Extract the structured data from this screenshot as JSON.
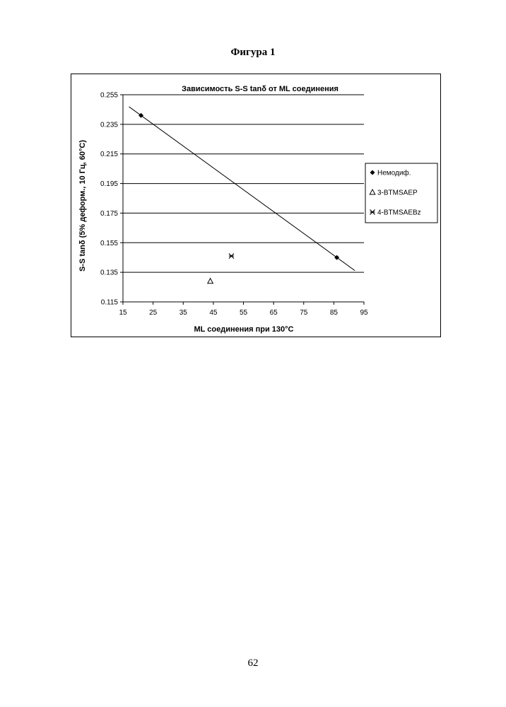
{
  "page": {
    "caption": "Фигура 1",
    "page_number": "62"
  },
  "chart_data": {
    "type": "scatter",
    "title": "Зависимость S-S tanδ от ML соединения",
    "xlabel": "ML соединения при 130°C",
    "ylabel": "S-S tanδ (5% деформ., 10 Гц, 60°C)",
    "xlim": [
      15,
      95
    ],
    "ylim": [
      0.115,
      0.255
    ],
    "x_ticks": [
      "15",
      "25",
      "35",
      "45",
      "55",
      "65",
      "75",
      "85",
      "95"
    ],
    "y_ticks": [
      "0.255",
      "0.235",
      "0.215",
      "0.195",
      "0.175",
      "0.155",
      "0.135",
      "0.115"
    ],
    "grid": "horizontal",
    "legend_position": "right",
    "series": [
      {
        "name": "Немодиф.",
        "marker": "diamond",
        "points": [
          [
            21,
            0.241
          ],
          [
            86,
            0.145
          ]
        ]
      },
      {
        "name": "3-BTMSAEP",
        "marker": "triangle-open",
        "points": [
          [
            44,
            0.129
          ]
        ]
      },
      {
        "name": "4-BTMSAEBz",
        "marker": "asterisk-x",
        "points": [
          [
            51,
            0.146
          ]
        ]
      }
    ],
    "trendline": {
      "series": "Немодиф.",
      "x_range": [
        17,
        92
      ]
    }
  }
}
